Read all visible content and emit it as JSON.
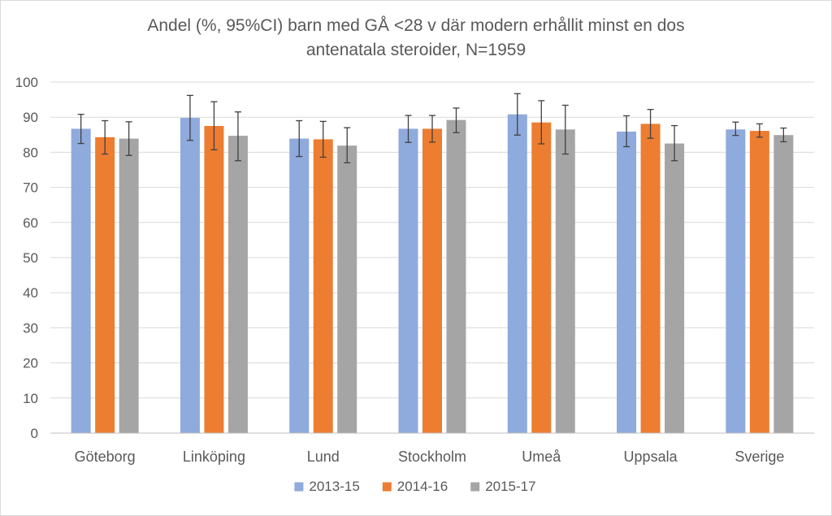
{
  "chart_data": {
    "type": "bar",
    "title_lines": [
      "Andel (%, 95%CI) barn  med GÅ <28 v där modern erhållit minst en dos",
      "antenatala steroider, N=1959"
    ],
    "categories": [
      "Göteborg",
      "Linköping",
      "Lund",
      "Stockholm",
      "Umeå",
      "Uppsala",
      "Sverige"
    ],
    "ylim": [
      0,
      100
    ],
    "yticks": [
      "0",
      "10",
      "20",
      "30",
      "40",
      "50",
      "60",
      "70",
      "80",
      "90",
      "100"
    ],
    "grid": true,
    "legend_position": "bottom",
    "series": [
      {
        "name": "2013-15",
        "color": "#8faadc",
        "values": [
          86.7,
          89.8,
          83.9,
          86.7,
          90.8,
          85.9,
          86.5
        ],
        "ci_low": [
          82.5,
          83.4,
          78.8,
          82.8,
          84.9,
          81.6,
          84.8
        ],
        "ci_high": [
          90.8,
          96.2,
          89.0,
          90.5,
          96.7,
          90.4,
          88.6
        ]
      },
      {
        "name": "2014-16",
        "color": "#ed7d31",
        "values": [
          84.3,
          87.5,
          83.7,
          86.7,
          88.5,
          88.1,
          86.1
        ],
        "ci_low": [
          79.5,
          80.7,
          78.6,
          82.9,
          82.4,
          84.0,
          84.3
        ],
        "ci_high": [
          89.0,
          94.4,
          88.8,
          90.5,
          94.7,
          92.2,
          88.1
        ]
      },
      {
        "name": "2015-17",
        "color": "#a5a5a5",
        "values": [
          83.9,
          84.7,
          81.9,
          89.2,
          86.5,
          82.5,
          84.9
        ],
        "ci_low": [
          79.1,
          77.6,
          77.0,
          85.6,
          79.5,
          77.6,
          83.0
        ],
        "ci_high": [
          88.7,
          91.5,
          87.0,
          92.6,
          93.4,
          87.6,
          86.9
        ]
      }
    ]
  }
}
